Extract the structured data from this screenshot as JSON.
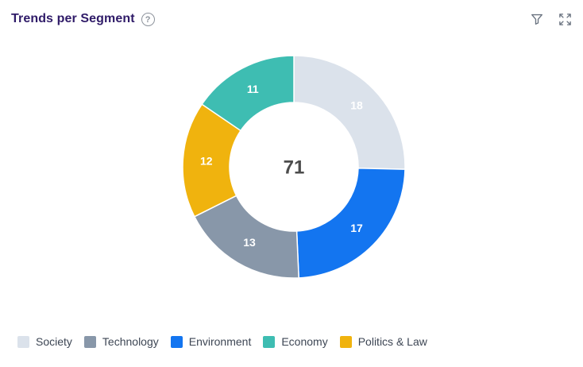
{
  "header": {
    "title": "Trends per Segment",
    "help_icon": "question-circle",
    "help_glyph": "?",
    "filter_icon": "funnel",
    "expand_icon": "fullscreen-arrows"
  },
  "chart_data": {
    "type": "pie",
    "variant": "donut",
    "title": "Trends per Segment",
    "center_label": "71",
    "total": 71,
    "direction": "clockwise",
    "start_angle_deg": 0,
    "segments": [
      {
        "label": "Society",
        "value": 18,
        "color": "#dbe2eb"
      },
      {
        "label": "Environment",
        "value": 17,
        "color": "#1375f0"
      },
      {
        "label": "Technology",
        "value": 13,
        "color": "#8897a9"
      },
      {
        "label": "Politics & Law",
        "value": 12,
        "color": "#f0b30e"
      },
      {
        "label": "Economy",
        "value": 11,
        "color": "#3ebdb2"
      }
    ],
    "value_label_color": "#ffffff",
    "center_label_color": "#4c4c4c",
    "legend_position": "bottom-left"
  },
  "legend": {
    "items": [
      {
        "label": "Society",
        "color": "#dbe2eb"
      },
      {
        "label": "Technology",
        "color": "#8897a9"
      },
      {
        "label": "Environment",
        "color": "#1375f0"
      },
      {
        "label": "Economy",
        "color": "#3ebdb2"
      },
      {
        "label": "Politics & Law",
        "color": "#f0b30e"
      }
    ]
  }
}
